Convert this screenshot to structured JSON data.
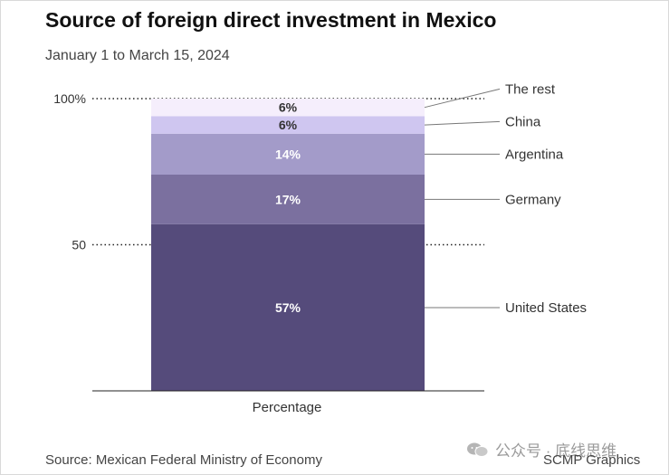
{
  "header": {
    "title": "Source of foreign direct investment in Mexico",
    "subtitle": "January 1 to March 15, 2024"
  },
  "footer": {
    "source": "Source: Mexican Federal Ministry of Economy",
    "credit": "SCMP Graphics",
    "watermark": "公众号 · 底线思维"
  },
  "chart_data": {
    "type": "bar",
    "stacked": true,
    "title": "Source of foreign direct investment in Mexico",
    "subtitle": "January 1 to March 15, 2024",
    "categories": [
      "Percentage"
    ],
    "xlabel": "Percentage",
    "ylabel": "",
    "ylim": [
      0,
      100
    ],
    "yticks": [
      {
        "value": 50,
        "label": "50"
      },
      {
        "value": 100,
        "label": "100%"
      }
    ],
    "series": [
      {
        "name": "United States",
        "values": [
          57
        ],
        "label": "57%",
        "color": "#554b7b",
        "label_color": "#ffffff"
      },
      {
        "name": "Germany",
        "values": [
          17
        ],
        "label": "17%",
        "color": "#7b709f",
        "label_color": "#ffffff"
      },
      {
        "name": "Argentina",
        "values": [
          14
        ],
        "label": "14%",
        "color": "#a39bc9",
        "label_color": "#ffffff"
      },
      {
        "name": "China",
        "values": [
          6
        ],
        "label": "6%",
        "color": "#cfc6f0",
        "label_color": "#333333"
      },
      {
        "name": "The rest",
        "values": [
          6
        ],
        "label": "6%",
        "color": "#f5eefc",
        "label_color": "#333333"
      }
    ]
  }
}
